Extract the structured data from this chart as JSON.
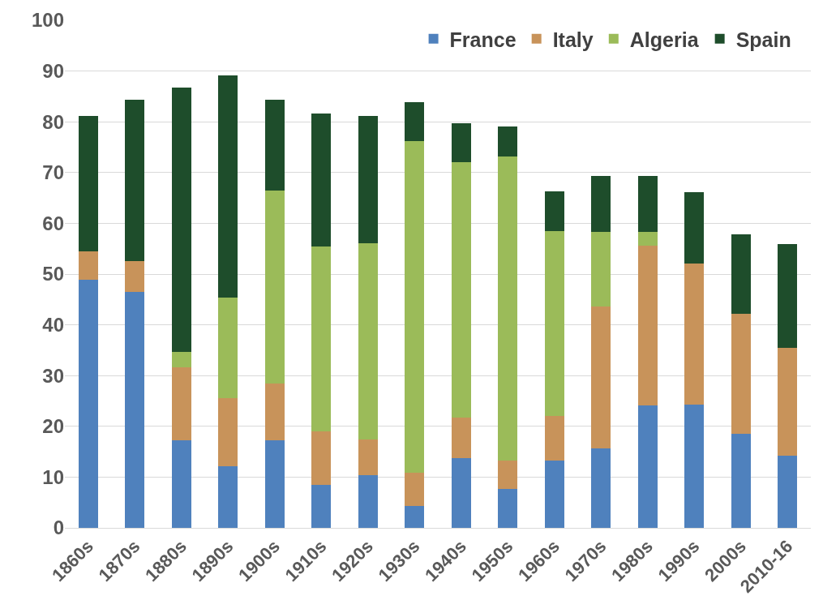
{
  "chart_data": {
    "type": "bar",
    "stacked": true,
    "categories": [
      "1860s",
      "1870s",
      "1880s",
      "1890s",
      "1900s",
      "1910s",
      "1920s",
      "1930s",
      "1940s",
      "1950s",
      "1960s",
      "1970s",
      "1980s",
      "1990s",
      "2000s",
      "2010-16"
    ],
    "series": [
      {
        "name": "France",
        "color": "#4f81bd",
        "values": [
          48.9,
          46.5,
          17.3,
          12.1,
          17.3,
          8.4,
          10.4,
          4.3,
          13.7,
          7.7,
          13.3,
          15.6,
          24.1,
          24.3,
          18.6,
          14.2
        ]
      },
      {
        "name": "Italy",
        "color": "#c8935a",
        "values": [
          5.5,
          6.1,
          14.3,
          13.5,
          11.1,
          10.6,
          7.0,
          6.5,
          8.0,
          5.6,
          8.8,
          28.0,
          31.5,
          27.8,
          23.5,
          21.2
        ]
      },
      {
        "name": "Algeria",
        "color": "#9bbb59",
        "values": [
          0,
          0,
          3.1,
          19.7,
          38.1,
          36.4,
          38.7,
          65.4,
          50.4,
          59.9,
          36.4,
          14.7,
          2.7,
          null,
          0,
          0
        ]
      },
      {
        "name": "Spain",
        "color": "#1e4d2b",
        "values": [
          26.8,
          31.7,
          52.0,
          43.8,
          17.8,
          26.3,
          25.1,
          7.6,
          7.6,
          5.9,
          7.8,
          11.1,
          11.1,
          14.0,
          15.7,
          20.5
        ]
      }
    ],
    "ylim": [
      0,
      100
    ],
    "yticks": [
      0,
      10,
      20,
      30,
      40,
      50,
      60,
      70,
      80,
      90,
      100
    ],
    "grid": "y",
    "legend": "top right"
  }
}
